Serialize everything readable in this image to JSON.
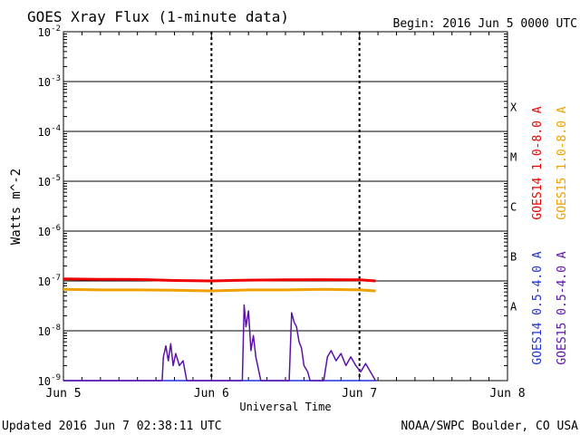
{
  "header": {
    "title": "GOES Xray Flux (1-minute data)",
    "begin": "Begin:  2016 Jun 5 0000 UTC"
  },
  "footer": {
    "updated": "Updated 2016 Jun  7 02:38:11 UTC",
    "credit": "NOAA/SWPC Boulder, CO USA"
  },
  "colors": {
    "goes14_long": "#ee0000",
    "goes15_long": "#f0a000",
    "goes14_short": "#2030dd",
    "goes15_short": "#5a12a8",
    "grid": "#000000"
  },
  "chart_data": {
    "type": "line",
    "title": "GOES Xray Flux (1-minute data)",
    "xlabel": "Universal Time",
    "ylabel": "Watts m^-2",
    "y_scale": "log",
    "ylim": [
      1e-09,
      0.01
    ],
    "y_ticks": [
      {
        "value": 1e-09,
        "label": "10",
        "exp": "-9"
      },
      {
        "value": 1e-08,
        "label": "10",
        "exp": "-8"
      },
      {
        "value": 1e-07,
        "label": "10",
        "exp": "-7"
      },
      {
        "value": 1e-06,
        "label": "10",
        "exp": "-6"
      },
      {
        "value": 1e-05,
        "label": "10",
        "exp": "-5"
      },
      {
        "value": 0.0001,
        "label": "10",
        "exp": "-4"
      },
      {
        "value": 0.001,
        "label": "10",
        "exp": "-3"
      },
      {
        "value": 0.01,
        "label": "10",
        "exp": "-2"
      }
    ],
    "x_unit": "hours since 2016-06-05 00:00 UTC",
    "xlim": [
      0,
      72
    ],
    "x_ticks": [
      {
        "value": 0,
        "label": "Jun 5"
      },
      {
        "value": 24,
        "label": "Jun 6"
      },
      {
        "value": 48,
        "label": "Jun 7"
      },
      {
        "value": 72,
        "label": "Jun 8"
      }
    ],
    "flare_classes": [
      {
        "label": "A",
        "value": 3.16e-08
      },
      {
        "label": "B",
        "value": 3.16e-07
      },
      {
        "label": "C",
        "value": 3.16e-06
      },
      {
        "label": "M",
        "value": 3.16e-05
      },
      {
        "label": "X",
        "value": 0.000316
      }
    ],
    "series": [
      {
        "name": "GOES14 1.0-8.0 A",
        "color_key": "goes14_long",
        "x": [
          0,
          6,
          12,
          18,
          24,
          30,
          36,
          42,
          48,
          50.6
        ],
        "y": [
          1.1e-07,
          1.08e-07,
          1.07e-07,
          1.02e-07,
          1e-07,
          1.04e-07,
          1.05e-07,
          1.06e-07,
          1.05e-07,
          1e-07
        ]
      },
      {
        "name": "GOES15 1.0-8.0 A",
        "color_key": "goes15_long",
        "x": [
          0,
          6,
          12,
          18,
          24,
          30,
          36,
          42,
          48,
          50.6
        ],
        "y": [
          6.8e-08,
          6.6e-08,
          6.6e-08,
          6.5e-08,
          6.3e-08,
          6.6e-08,
          6.6e-08,
          6.8e-08,
          6.6e-08,
          6.3e-08
        ]
      },
      {
        "name": "GOES14 0.5-4.0 A",
        "color_key": "goes14_short",
        "x": [
          0,
          50.6
        ],
        "y": [
          1e-09,
          1e-09
        ]
      },
      {
        "name": "GOES15 0.5-4.0 A",
        "color_key": "goes15_short",
        "x": [
          0,
          16,
          16.2,
          16.6,
          17.0,
          17.4,
          17.8,
          18.2,
          18.8,
          19.4,
          20,
          29.0,
          29.3,
          29.6,
          30.0,
          30.4,
          30.8,
          31.2,
          32,
          36.6,
          37.0,
          37.4,
          37.8,
          38.2,
          38.6,
          39.0,
          39.6,
          40,
          42.2,
          42.8,
          43.4,
          44.2,
          45.0,
          45.8,
          46.6,
          47.4,
          48.2,
          49.0,
          50.6
        ],
        "y": [
          1e-09,
          1e-09,
          3e-09,
          5e-09,
          2.5e-09,
          5.5e-09,
          2e-09,
          3.5e-09,
          2e-09,
          2.5e-09,
          1e-09,
          1e-09,
          3.3e-08,
          1.2e-08,
          2.5e-08,
          4e-09,
          8e-09,
          3e-09,
          1e-09,
          1e-09,
          2.3e-08,
          1.5e-08,
          1.2e-08,
          6e-09,
          4.5e-09,
          2e-09,
          1.5e-09,
          1e-09,
          1e-09,
          3e-09,
          4e-09,
          2.5e-09,
          3.5e-09,
          2e-09,
          3e-09,
          2e-09,
          1.5e-09,
          2.2e-09,
          1e-09
        ]
      }
    ]
  }
}
